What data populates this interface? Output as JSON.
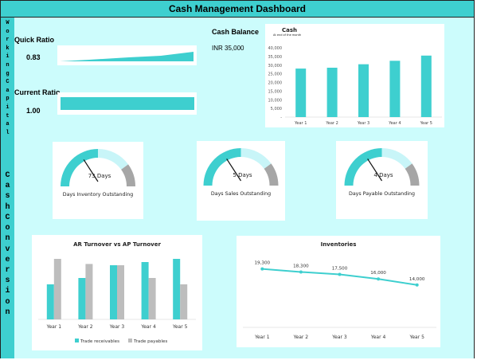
{
  "header": {
    "title": "Cash Management Dashboard"
  },
  "sidebar": {
    "working_capital": [
      "W",
      "o",
      "r",
      "k",
      "i",
      "n",
      "g",
      "C",
      "a",
      "p",
      "i",
      "t",
      "a",
      "l"
    ],
    "cash_conversion": [
      "C",
      "a",
      "s",
      "h",
      "C",
      "o",
      "n",
      "v",
      "e",
      "r",
      "s",
      "i",
      "o",
      "n"
    ]
  },
  "ratios": {
    "quick_label": "Quick Ratio",
    "quick_value": "0.83",
    "current_label": "Current Ratio",
    "current_value": "1.00"
  },
  "cash_balance": {
    "label": "Cash Balance",
    "value": "INR 35,000"
  },
  "colors": {
    "teal": "#3ecfcf",
    "light_teal": "#ccfcfc",
    "grey": "#bdbdbd",
    "dark_grey": "#a6a6a6"
  },
  "gauges": [
    {
      "caption": "Days Inventory Outstanding",
      "value_label": "73 Days"
    },
    {
      "caption": "Days Sales Outstanding",
      "value_label": "5 Days"
    },
    {
      "caption": "Days Payable Outstanding",
      "value_label": "4 Days"
    }
  ],
  "chart_data": [
    {
      "type": "bar",
      "title": "Cash",
      "subtitle": "At end of the month",
      "categories": [
        "Year 1",
        "Year 2",
        "Year 3",
        "Year 4",
        "Year 5"
      ],
      "values": [
        28000,
        28500,
        30500,
        32500,
        35500
      ],
      "ylim": [
        0,
        40000
      ],
      "yticks": [
        "40,000",
        "35,000",
        "30,000",
        "25,000",
        "20,000",
        "15,000",
        "10,000",
        "5,000",
        "-"
      ]
    },
    {
      "type": "bar",
      "title": "AR Turnover vs AP Turnover",
      "categories": [
        "Year 1",
        "Year 2",
        "Year 3",
        "Year 4",
        "Year 5"
      ],
      "series": [
        {
          "name": "Trade receivables",
          "values": [
            5.5,
            6.5,
            8.5,
            9,
            9.5
          ]
        },
        {
          "name": "Trade payables",
          "values": [
            9.5,
            8.7,
            8.5,
            6.5,
            5.5
          ]
        }
      ],
      "ylim": [
        0,
        10.5
      ],
      "legend": "bottom"
    },
    {
      "type": "line",
      "title": "Inventories",
      "categories": [
        "Year 1",
        "Year 2",
        "Year 3",
        "Year 4",
        "Year 5"
      ],
      "values": [
        19300,
        18300,
        17500,
        16000,
        14000
      ],
      "labels": [
        "19,300",
        "18,300",
        "17,500",
        "16,000",
        "14,000"
      ],
      "ylim": [
        0,
        25000
      ]
    }
  ]
}
